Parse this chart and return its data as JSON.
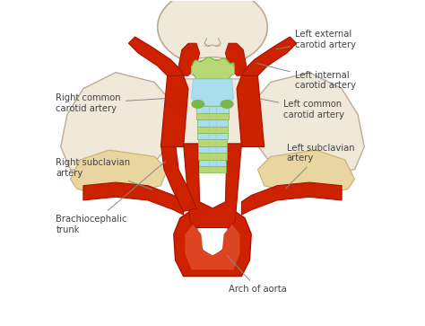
{
  "bg_color": "#ffffff",
  "artery_red": "#cc2200",
  "artery_red_light": "#dd4422",
  "artery_red_dark": "#aa1100",
  "green_color": "#7ab648",
  "green_light": "#b8d878",
  "blue_light": "#aaddee",
  "blue_color": "#88ccdd",
  "tan_color": "#e8d5a0",
  "tan_dark": "#c8b070",
  "skin_color": "#f0e8d8",
  "skin_outline": "#bbaa99",
  "line_color": "#555555",
  "text_color": "#444444",
  "labels": {
    "left_external": "Left external\ncarotid artery",
    "left_internal": "Left internal\ncarotid artery",
    "left_common": "Left common\ncarotid artery",
    "left_subclavian": "Left subclavian\nartery",
    "right_common": "Right common\ncarotid artery",
    "right_subclavian": "Right subclavian\nartery",
    "brachiocephalic": "Brachiocephalic\ntrunk",
    "arch_of_aorta": "Arch of aorta"
  },
  "figsize": [
    4.74,
    3.63
  ],
  "dpi": 100
}
